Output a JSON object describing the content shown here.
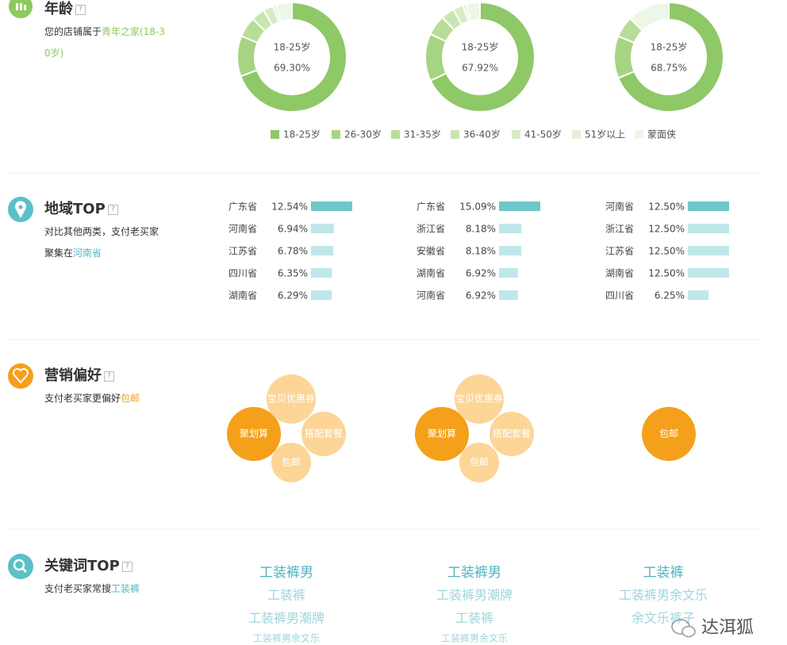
{
  "age": {
    "title": "年龄",
    "help": "?",
    "desc": "您的店铺属于",
    "highlight": "青年之家(18-30岁)",
    "legend": [
      "18-25岁",
      "26-30岁",
      "31-35岁",
      "36-40岁",
      "41-50岁",
      "51岁以上",
      "蒙面侠"
    ],
    "colors": [
      "#8fc866",
      "#a6d482",
      "#b8dd98",
      "#c9e6b0",
      "#d7ecc5",
      "#e3f1d6",
      "#eef6e7"
    ],
    "donuts": [
      {
        "center_label": "18-25岁",
        "center_value": "69.30%",
        "values": [
          69.3,
          12,
          6,
          4,
          3,
          1,
          4.7
        ]
      },
      {
        "center_label": "18-25岁",
        "center_value": "67.92%",
        "values": [
          67.92,
          14,
          6,
          4,
          3,
          1,
          4.08
        ]
      },
      {
        "center_label": "18-25岁",
        "center_value": "68.75%",
        "values": [
          68.75,
          12.5,
          6.25,
          0,
          0,
          0,
          12.5
        ]
      }
    ]
  },
  "region": {
    "title": "地域TOP",
    "help": "?",
    "desc": "对比其他两类，支付老买家聚集在",
    "highlight": "河南省",
    "columns": [
      [
        {
          "name": "广东省",
          "value": 12.54,
          "label": "12.54%"
        },
        {
          "name": "河南省",
          "value": 6.94,
          "label": "6.94%"
        },
        {
          "name": "江苏省",
          "value": 6.78,
          "label": "6.78%"
        },
        {
          "name": "四川省",
          "value": 6.35,
          "label": "6.35%"
        },
        {
          "name": "湖南省",
          "value": 6.29,
          "label": "6.29%"
        }
      ],
      [
        {
          "name": "广东省",
          "value": 15.09,
          "label": "15.09%"
        },
        {
          "name": "浙江省",
          "value": 8.18,
          "label": "8.18%"
        },
        {
          "name": "安徽省",
          "value": 8.18,
          "label": "8.18%"
        },
        {
          "name": "湖南省",
          "value": 6.92,
          "label": "6.92%"
        },
        {
          "name": "河南省",
          "value": 6.92,
          "label": "6.92%"
        }
      ],
      [
        {
          "name": "河南省",
          "value": 12.5,
          "label": "12.50%"
        },
        {
          "name": "浙江省",
          "value": 12.5,
          "label": "12.50%"
        },
        {
          "name": "江苏省",
          "value": 12.5,
          "label": "12.50%"
        },
        {
          "name": "湖南省",
          "value": 12.5,
          "label": "12.50%"
        },
        {
          "name": "四川省",
          "value": 6.25,
          "label": "6.25%"
        }
      ]
    ]
  },
  "marketing": {
    "title": "营销偏好",
    "help": "?",
    "desc": "支付老买家更偏好",
    "highlight": "包邮",
    "columns": [
      [
        "聚划算",
        "宝贝优惠券",
        "搭配套餐",
        "包邮"
      ],
      [
        "聚划算",
        "宝贝优惠券",
        "搭配套餐",
        "包邮"
      ],
      [
        "包邮"
      ]
    ]
  },
  "keywords": {
    "title": "关键词TOP",
    "help": "?",
    "desc": "支付老买家常搜",
    "highlight": "工装裤",
    "columns": [
      [
        "工装裤男",
        "工装裤",
        "工装裤男潮牌",
        "工装裤男余文乐"
      ],
      [
        "工装裤男",
        "工装裤男潮牌",
        "工装裤",
        "工装裤男余文乐"
      ],
      [
        "工装裤",
        "工装裤男余文乐",
        "余文乐裤子"
      ]
    ]
  },
  "watermark": "达洱狐"
}
